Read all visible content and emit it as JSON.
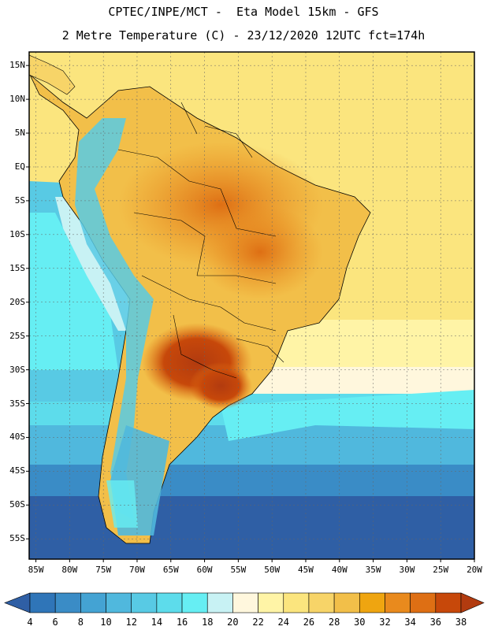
{
  "title": {
    "line1": "CPTEC/INPE/MCT -  Eta Model 15km - GFS",
    "line2": "2 Metre Temperature (C) - 23/12/2020 12UTC fct=174h"
  },
  "map": {
    "region": "South America",
    "lat_range": [
      -58,
      17
    ],
    "lon_range": [
      -86,
      -20
    ],
    "lat_labels": [
      "15N",
      "10N",
      "5N",
      "EQ",
      "5S",
      "10S",
      "15S",
      "20S",
      "25S",
      "30S",
      "35S",
      "40S",
      "45S",
      "50S",
      "55S"
    ],
    "lon_labels": [
      "85W",
      "80W",
      "75W",
      "70W",
      "65W",
      "60W",
      "55W",
      "50W",
      "45W",
      "40W",
      "35W",
      "30W",
      "25W",
      "20W"
    ]
  },
  "colorbar": {
    "labels": [
      "4",
      "6",
      "8",
      "10",
      "12",
      "14",
      "16",
      "18",
      "20",
      "22",
      "24",
      "26",
      "28",
      "30",
      "32",
      "34",
      "36",
      "38"
    ],
    "colors": [
      "#2f5fa5",
      "#2f75b8",
      "#3a8cc6",
      "#44a3d3",
      "#50b8dd",
      "#58cae4",
      "#5ddceb",
      "#66eef3",
      "#c8f2f4",
      "#fff7dd",
      "#fff4a6",
      "#fbe57e",
      "#f7d468",
      "#f2bf49",
      "#efa510",
      "#e98a1d",
      "#de6f14",
      "#c7480a",
      "#b23b0f"
    ]
  }
}
